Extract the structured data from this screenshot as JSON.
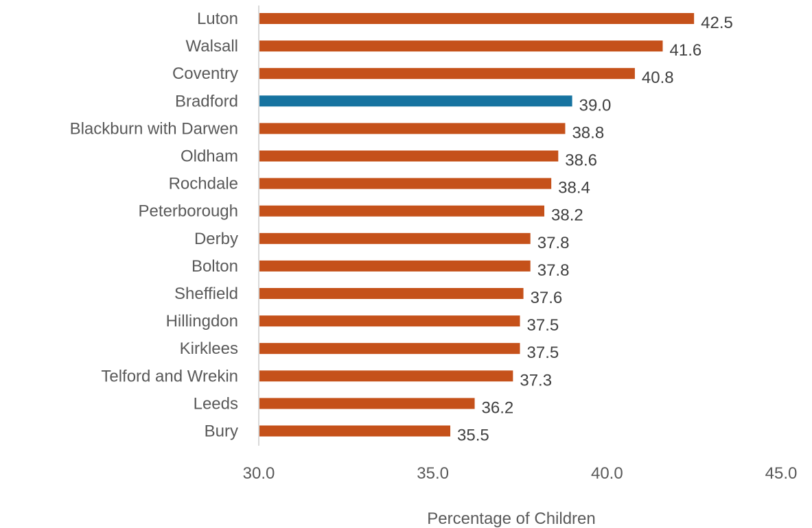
{
  "chart_data": {
    "type": "bar",
    "orientation": "horizontal",
    "categories": [
      "Luton",
      "Walsall",
      "Coventry",
      "Bradford",
      "Blackburn with Darwen",
      "Oldham",
      "Rochdale",
      "Peterborough",
      "Derby",
      "Bolton",
      "Sheffield",
      "Hillingdon",
      "Kirklees",
      "Telford and Wrekin",
      "Leeds",
      "Bury"
    ],
    "values": [
      42.5,
      41.6,
      40.8,
      39.0,
      38.8,
      38.6,
      38.4,
      38.2,
      37.8,
      37.8,
      37.6,
      37.5,
      37.5,
      37.3,
      36.2,
      35.5
    ],
    "value_labels": [
      "42.5",
      "41.6",
      "40.8",
      "39.0",
      "38.8",
      "38.6",
      "38.4",
      "38.2",
      "37.8",
      "37.8",
      "37.6",
      "37.5",
      "37.5",
      "37.3",
      "36.2",
      "35.5"
    ],
    "highlight": "Bradford",
    "xlabel": "Percentage of Children",
    "ylabel": "",
    "xlim": [
      30,
      45
    ],
    "xticks": [
      30,
      35,
      40,
      45
    ],
    "xtick_labels": [
      "30.0",
      "35.0",
      "40.0",
      "45.0"
    ],
    "grid": false,
    "colors": {
      "bar": "#c5511a",
      "highlight": "#1673a0",
      "axis": "#d9d9d9"
    }
  }
}
